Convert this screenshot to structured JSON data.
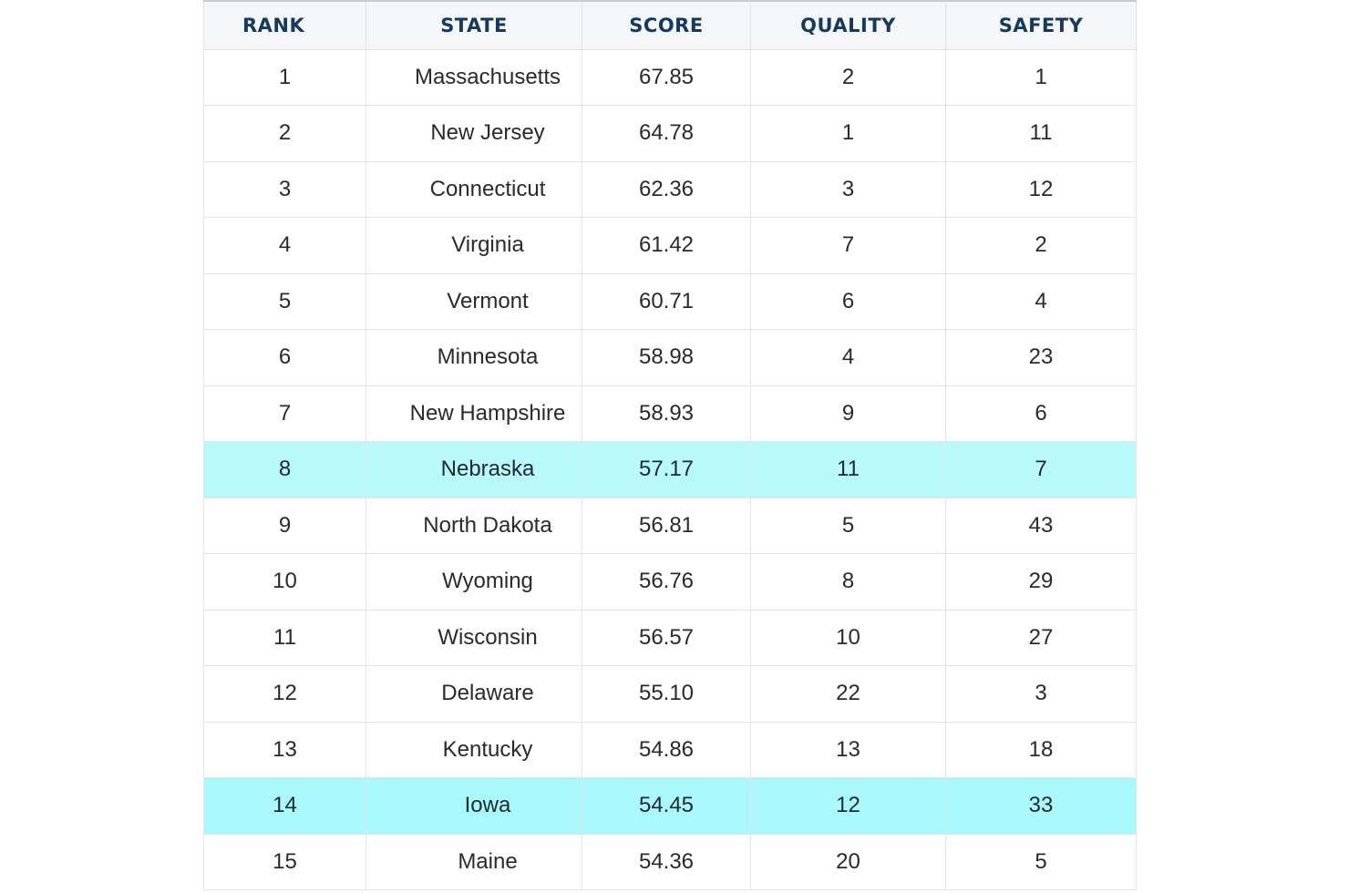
{
  "table": {
    "headers": [
      "RANK",
      "STATE",
      "SCORE",
      "QUALITY",
      "SAFETY"
    ],
    "rows": [
      {
        "rank": "1",
        "state": "Massachusetts",
        "score": "67.85",
        "quality": "2",
        "safety": "1",
        "highlight": false
      },
      {
        "rank": "2",
        "state": "New Jersey",
        "score": "64.78",
        "quality": "1",
        "safety": "11",
        "highlight": false
      },
      {
        "rank": "3",
        "state": "Connecticut",
        "score": "62.36",
        "quality": "3",
        "safety": "12",
        "highlight": false
      },
      {
        "rank": "4",
        "state": "Virginia",
        "score": "61.42",
        "quality": "7",
        "safety": "2",
        "highlight": false
      },
      {
        "rank": "5",
        "state": "Vermont",
        "score": "60.71",
        "quality": "6",
        "safety": "4",
        "highlight": false
      },
      {
        "rank": "6",
        "state": "Minnesota",
        "score": "58.98",
        "quality": "4",
        "safety": "23",
        "highlight": false
      },
      {
        "rank": "7",
        "state": "New Hampshire",
        "score": "58.93",
        "quality": "9",
        "safety": "6",
        "highlight": false
      },
      {
        "rank": "8",
        "state": "Nebraska",
        "score": "57.17",
        "quality": "11",
        "safety": "7",
        "highlight": true
      },
      {
        "rank": "9",
        "state": "North Dakota",
        "score": "56.81",
        "quality": "5",
        "safety": "43",
        "highlight": false
      },
      {
        "rank": "10",
        "state": "Wyoming",
        "score": "56.76",
        "quality": "8",
        "safety": "29",
        "highlight": false
      },
      {
        "rank": "11",
        "state": "Wisconsin",
        "score": "56.57",
        "quality": "10",
        "safety": "27",
        "highlight": false
      },
      {
        "rank": "12",
        "state": "Delaware",
        "score": "55.10",
        "quality": "22",
        "safety": "3",
        "highlight": false
      },
      {
        "rank": "13",
        "state": "Kentucky",
        "score": "54.86",
        "quality": "13",
        "safety": "18",
        "highlight": false
      },
      {
        "rank": "14",
        "state": "Iowa",
        "score": "54.45",
        "quality": "12",
        "safety": "33",
        "highlight": true
      },
      {
        "rank": "15",
        "state": "Maine",
        "score": "54.36",
        "quality": "20",
        "safety": "5",
        "highlight": false
      }
    ]
  },
  "colors": {
    "header_text": "#163a5c",
    "header_bg": "#f4f6f8",
    "highlight_bg": "#b8fafa",
    "body_text": "#2a2a2a",
    "border": "#e2e4e7"
  }
}
